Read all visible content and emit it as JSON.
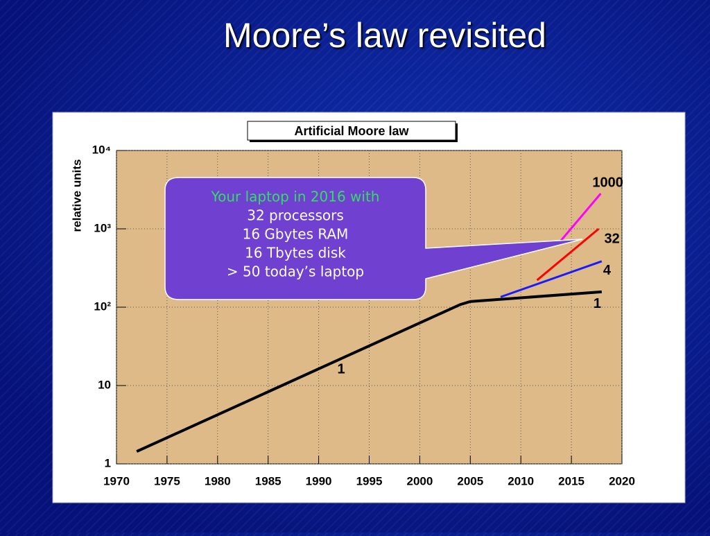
{
  "slide_title": "Moore’s law revisited",
  "chart_data": {
    "type": "line",
    "title": "Artificial Moore law",
    "ylabel": "relative units",
    "log_y": true,
    "grid": true,
    "xlim": [
      1970,
      2020
    ],
    "xticks": [
      1970,
      1975,
      1980,
      1985,
      1990,
      1995,
      2000,
      2005,
      2010,
      2015,
      2020
    ],
    "ylim": [
      1,
      10000
    ],
    "yticks": [
      1,
      10,
      {
        "value": 100,
        "label": "10²"
      },
      {
        "value": 1000,
        "label": "10³"
      },
      {
        "value": 10000,
        "label": "10⁴"
      }
    ],
    "series": [
      {
        "name": "1",
        "color": "#000000",
        "x": [
          1972,
          2004,
          2005,
          2018
        ],
        "values": [
          1.44,
          108,
          118,
          157
        ]
      },
      {
        "name": "4",
        "color": "#1a1aff",
        "x": [
          2008,
          2018
        ],
        "values": [
          135,
          385
        ]
      },
      {
        "name": "32",
        "color": "#ff0000",
        "x": [
          2011.6,
          2017.7
        ],
        "values": [
          221,
          1000
        ]
      },
      {
        "name": "1000",
        "color": "#ff00ff",
        "x": [
          2013.9,
          2017.9
        ],
        "values": [
          692,
          2820
        ]
      }
    ],
    "annotation": "1",
    "callout": [
      "Your laptop in 2016 with",
      "32 processors",
      "16 Gbytes RAM",
      "16 Tbytes disk",
      "> 50 today’s laptop"
    ]
  }
}
